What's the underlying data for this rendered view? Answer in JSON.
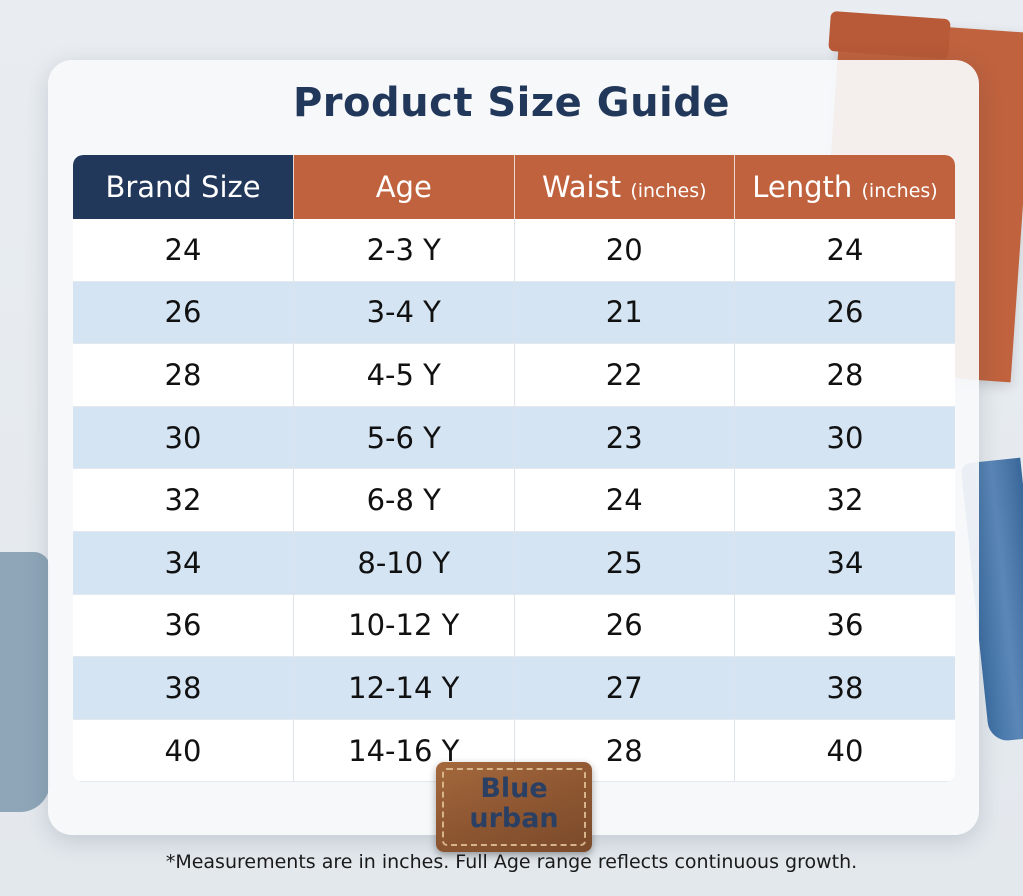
{
  "title": "Product Size Guide",
  "colors": {
    "navy": "#22385a",
    "rust": "#c0623e",
    "stripe": "#d4e4f3"
  },
  "headers": [
    {
      "label": "Brand Size",
      "unit": ""
    },
    {
      "label": "Age",
      "unit": ""
    },
    {
      "label": "Waist",
      "unit": "(inches)"
    },
    {
      "label": "Length",
      "unit": "(inches)"
    }
  ],
  "rows": [
    [
      "24",
      "2-3 Y",
      "20",
      "24"
    ],
    [
      "26",
      "3-4 Y",
      "21",
      "26"
    ],
    [
      "28",
      "4-5 Y",
      "22",
      "28"
    ],
    [
      "30",
      "5-6 Y",
      "23",
      "30"
    ],
    [
      "32",
      "6-8 Y",
      "24",
      "32"
    ],
    [
      "34",
      "8-10 Y",
      "25",
      "34"
    ],
    [
      "36",
      "10-12 Y",
      "26",
      "36"
    ],
    [
      "38",
      "12-14 Y",
      "27",
      "38"
    ],
    [
      "40",
      "14-16 Y",
      "28",
      "40"
    ]
  ],
  "brand": {
    "line1": "Blue",
    "line2": "urban"
  },
  "footnote": "*Measurements are in inches. Full Age range reflects continuous growth."
}
